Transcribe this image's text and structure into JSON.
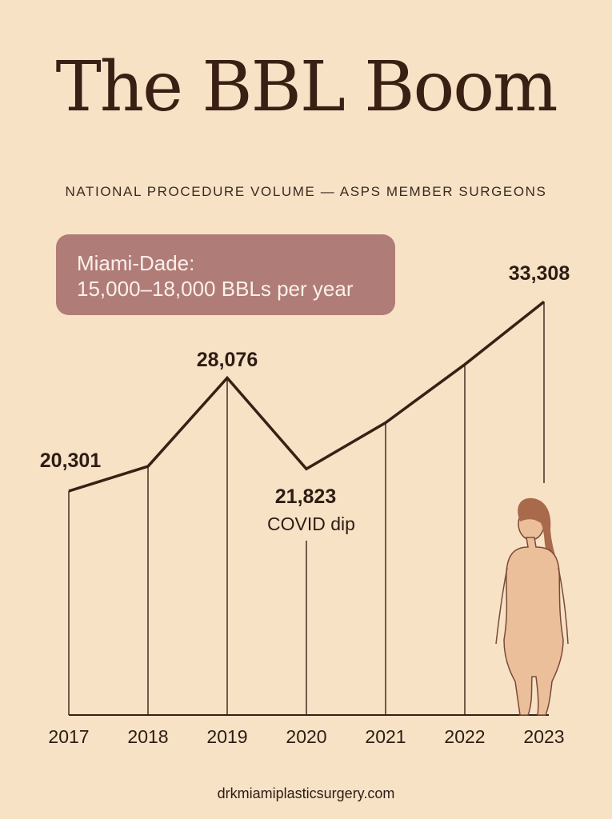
{
  "header": {
    "title": "The BBL Boom",
    "subtitle": "NATIONAL PROCEDURE VOLUME — ASPS MEMBER SURGEONS"
  },
  "callout": {
    "line1": "Miami-Dade:",
    "line2": "15,000–18,000 BBLs per year"
  },
  "footer": {
    "source": "drkmiamiplasticsurgery.com"
  },
  "colors": {
    "background": "#f7e2c6",
    "line": "#3a1f14",
    "callout": "#b07c78",
    "figure": "#ecbf9b"
  },
  "illustration": {
    "icon": "woman-silhouette-icon"
  },
  "chart_data": {
    "type": "line",
    "title": "The BBL Boom",
    "subtitle": "NATIONAL PROCEDURE VOLUME — ASPS MEMBER SURGEONS",
    "xlabel": "",
    "ylabel": "",
    "x": [
      "2017",
      "2018",
      "2019",
      "2020",
      "2021",
      "2022",
      "2023"
    ],
    "series": [
      {
        "values": [
          20301,
          22000,
          28076,
          21823,
          25000,
          29000,
          33308
        ]
      }
    ],
    "data_labels": [
      {
        "x": "2017",
        "text": "20,301"
      },
      {
        "x": "2019",
        "text": "28,076"
      },
      {
        "x": "2020",
        "text": "21,823"
      },
      {
        "x": "2023",
        "text": "33,308"
      }
    ],
    "annotations": [
      {
        "x": "2020",
        "text": "COVID dip"
      }
    ],
    "grid": false,
    "legend": "none"
  }
}
